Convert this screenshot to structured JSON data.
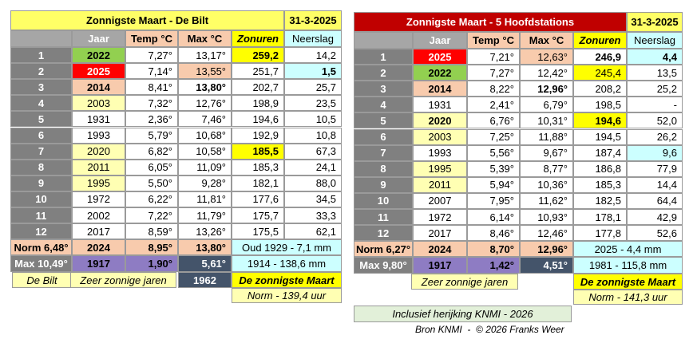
{
  "left": {
    "title": "Zonnigste Maart - De Bilt",
    "date": "31-3-2025",
    "header": [
      "Jaar",
      "Temp °C",
      "Max °C",
      "Zonuren",
      "Neerslag"
    ],
    "rows": [
      [
        "1",
        "2022",
        "7,27°",
        "13,17°",
        "259,2",
        "14,2"
      ],
      [
        "2",
        "2025",
        "7,14°",
        "13,55°",
        "251,7",
        "1,5"
      ],
      [
        "3",
        "2014",
        "8,41°",
        "13,80°",
        "202,7",
        "25,7"
      ],
      [
        "4",
        "2003",
        "7,32°",
        "12,76°",
        "198,9",
        "23,5"
      ],
      [
        "5",
        "1931",
        "2,36°",
        "7,46°",
        "194,6",
        "10,5"
      ],
      [
        "6",
        "1993",
        "5,79°",
        "10,68°",
        "192,9",
        "10,8"
      ],
      [
        "7",
        "2020",
        "6,82°",
        "10,58°",
        "185,5",
        "67,3"
      ],
      [
        "8",
        "2011",
        "6,05°",
        "11,09°",
        "185,3",
        "24,1"
      ],
      [
        "9",
        "1995",
        "5,50°",
        "9,28°",
        "182,1",
        "88,0"
      ],
      [
        "10",
        "1972",
        "6,22°",
        "11,81°",
        "177,6",
        "34,5"
      ],
      [
        "11",
        "2002",
        "7,22°",
        "11,79°",
        "175,7",
        "33,3"
      ],
      [
        "12",
        "2017",
        "8,59°",
        "13,26°",
        "175,5",
        "62,1"
      ]
    ],
    "norm_row": [
      "Norm 6,48°",
      "2024",
      "8,95°",
      "13,80°",
      "Oud 1929 - 7,1 mm"
    ],
    "max_row": [
      "Max 10,49°",
      "1917",
      "1,90°",
      "5,61°",
      "1914 - 138,6 mm"
    ],
    "footer": {
      "location": "De Bilt",
      "label": "Zeer zonnige jaren",
      "year": "1962",
      "best": "De zonnigste Maart",
      "norm": "Norm  - 139,4 uur"
    }
  },
  "right": {
    "title": "Zonnigste Maart - 5 Hoofdstations",
    "date": "31-3-2025",
    "header": [
      "Jaar",
      "Temp °C",
      "Max °C",
      "Zonuren",
      "Neerslag"
    ],
    "rows": [
      [
        "1",
        "2025",
        "7,21°",
        "12,63°",
        "246,9",
        "4,4"
      ],
      [
        "2",
        "2022",
        "7,27°",
        "12,42°",
        "245,4",
        "13,5"
      ],
      [
        "3",
        "2014",
        "8,22°",
        "12,96°",
        "208,2",
        "25,2"
      ],
      [
        "4",
        "1931",
        "2,41°",
        "6,79°",
        "198,5",
        "-"
      ],
      [
        "5",
        "2020",
        "6,76°",
        "10,31°",
        "194,6",
        "52,0"
      ],
      [
        "6",
        "2003",
        "7,25°",
        "11,88°",
        "194,5",
        "26,2"
      ],
      [
        "7",
        "1993",
        "5,56°",
        "9,67°",
        "187,4",
        "9,6"
      ],
      [
        "8",
        "1995",
        "5,39°",
        "8,77°",
        "186,8",
        "77,9"
      ],
      [
        "9",
        "2011",
        "5,94°",
        "10,36°",
        "185,3",
        "14,4"
      ],
      [
        "10",
        "2007",
        "7,95°",
        "11,62°",
        "182,5",
        "64,4"
      ],
      [
        "11",
        "1972",
        "6,14°",
        "10,93°",
        "178,1",
        "42,9"
      ],
      [
        "12",
        "2017",
        "8,46°",
        "12,46°",
        "177,8",
        "52,6"
      ]
    ],
    "norm_row": [
      "Norm 6,27°",
      "2024",
      "8,70°",
      "12,96°",
      "2025 - 4,4 mm"
    ],
    "max_row": [
      "Max 9,80°",
      "1917",
      "1,42°",
      "4,51°",
      "1981 - 115,8 mm"
    ],
    "footer": {
      "label": "Zeer zonnige jaren",
      "best": "De zonnigste Maart",
      "norm": "Norm  - 141,3 uur"
    },
    "note": "Inclusief herijking KNMI - 2026"
  },
  "source": "Bron KNMI  -  © 2026 Franks Weer"
}
